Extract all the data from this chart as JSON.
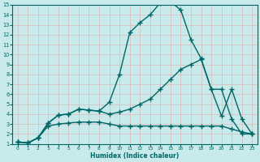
{
  "xlabel": "Humidex (Indice chaleur)",
  "bg_color": "#c8eaea",
  "grid_color": "#b8dada",
  "line_color": "#006666",
  "xlim": [
    -0.5,
    23.5
  ],
  "ylim": [
    1,
    15
  ],
  "xticks": [
    0,
    1,
    2,
    3,
    4,
    5,
    6,
    7,
    8,
    9,
    10,
    11,
    12,
    13,
    14,
    15,
    16,
    17,
    18,
    19,
    20,
    21,
    22,
    23
  ],
  "yticks": [
    1,
    2,
    3,
    4,
    5,
    6,
    7,
    8,
    9,
    10,
    11,
    12,
    13,
    14,
    15
  ],
  "line1_x": [
    0,
    1,
    2,
    3,
    4,
    5,
    6,
    7,
    8,
    9,
    10,
    11,
    12,
    13,
    14,
    15,
    16,
    17,
    18,
    19,
    20,
    21,
    22,
    23
  ],
  "line1_y": [
    1.2,
    1.1,
    1.6,
    3.1,
    3.9,
    4.0,
    4.5,
    4.4,
    4.3,
    5.2,
    8.0,
    12.2,
    13.2,
    14.0,
    15.2,
    15.3,
    14.5,
    11.5,
    9.6,
    6.5,
    3.8,
    6.5,
    3.5,
    2.0
  ],
  "line2_x": [
    0,
    1,
    2,
    3,
    4,
    5,
    6,
    7,
    8,
    9,
    10,
    11,
    12,
    13,
    14,
    15,
    16,
    17,
    18,
    19,
    20,
    21,
    22,
    23
  ],
  "line2_y": [
    1.2,
    1.1,
    1.6,
    3.1,
    3.9,
    4.0,
    4.5,
    4.4,
    4.3,
    4.0,
    4.2,
    4.5,
    5.0,
    5.5,
    6.5,
    7.5,
    8.5,
    9.0,
    9.5,
    6.5,
    6.5,
    3.5,
    2.0,
    2.0
  ],
  "line3_x": [
    0,
    1,
    2,
    3,
    4,
    5,
    6,
    7,
    8,
    9,
    10,
    11,
    12,
    13,
    14,
    15,
    16,
    17,
    18,
    19,
    20,
    21,
    22,
    23
  ],
  "line3_y": [
    1.2,
    1.1,
    1.6,
    2.8,
    3.0,
    3.1,
    3.2,
    3.2,
    3.2,
    3.0,
    2.8,
    2.8,
    2.8,
    2.8,
    2.8,
    2.8,
    2.8,
    2.8,
    2.8,
    2.8,
    2.8,
    2.5,
    2.2,
    2.0
  ]
}
